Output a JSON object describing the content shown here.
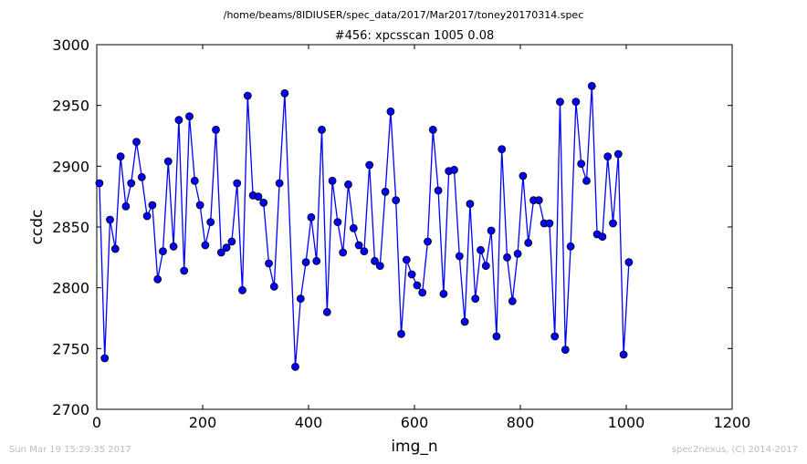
{
  "page": {
    "supertitle": "/home/beams/8IDIUSER/spec_data/2017/Mar2017/toney20170314.spec",
    "timestamp": "Sun Mar 19 15:29:35 2017",
    "credit": "spec2nexus, (C) 2014-2017"
  },
  "chart_data": {
    "type": "line",
    "title": "#456: xpcsscan 1005 0.08",
    "xlabel": "img_n",
    "ylabel": "ccdc",
    "xlim": [
      0,
      1200
    ],
    "ylim": [
      2700,
      3000
    ],
    "xticks": [
      0,
      200,
      400,
      600,
      800,
      1000,
      1200
    ],
    "yticks": [
      2700,
      2750,
      2800,
      2850,
      2900,
      2950,
      3000
    ],
    "grid": false,
    "legend": "none",
    "series": [
      {
        "line_color": "#0000ff",
        "marker_color": "#0000ff",
        "marker": "circle",
        "x": [
          5,
          15,
          25,
          35,
          45,
          55,
          65,
          75,
          85,
          95,
          105,
          115,
          125,
          135,
          145,
          155,
          165,
          175,
          185,
          195,
          205,
          215,
          225,
          235,
          245,
          255,
          265,
          275,
          285,
          295,
          305,
          315,
          325,
          335,
          345,
          355,
          375,
          385,
          395,
          405,
          415,
          425,
          435,
          445,
          455,
          465,
          475,
          485,
          495,
          505,
          515,
          525,
          535,
          545,
          555,
          565,
          575,
          585,
          595,
          605,
          615,
          625,
          635,
          645,
          655,
          665,
          675,
          685,
          695,
          705,
          715,
          725,
          735,
          745,
          755,
          765,
          775,
          785,
          795,
          805,
          815,
          825,
          835,
          845,
          855,
          865,
          875,
          885,
          895,
          905,
          915,
          925,
          935,
          945,
          955,
          965,
          975,
          985,
          995,
          1005
        ],
        "y": [
          2886,
          2742,
          2856,
          2832,
          2908,
          2867,
          2886,
          2920,
          2891,
          2859,
          2868,
          2807,
          2830,
          2904,
          2834,
          2938,
          2814,
          2941,
          2888,
          2868,
          2835,
          2854,
          2930,
          2829,
          2833,
          2838,
          2886,
          2798,
          2958,
          2876,
          2875,
          2870,
          2820,
          2801,
          2886,
          2960,
          2735,
          2791,
          2821,
          2858,
          2822,
          2930,
          2780,
          2888,
          2854,
          2829,
          2885,
          2849,
          2835,
          2830,
          2901,
          2822,
          2818,
          2879,
          2945,
          2872,
          2762,
          2823,
          2811,
          2802,
          2796,
          2838,
          2930,
          2880,
          2795,
          2896,
          2897,
          2826,
          2772,
          2869,
          2791,
          2831,
          2818,
          2847,
          2760,
          2914,
          2825,
          2789,
          2828,
          2892,
          2837,
          2872,
          2872,
          2853,
          2853,
          2760,
          2953,
          2749,
          2834,
          2953,
          2902,
          2888,
          2966,
          2844,
          2842,
          2908,
          2853,
          2910,
          2745,
          2821
        ]
      }
    ]
  }
}
